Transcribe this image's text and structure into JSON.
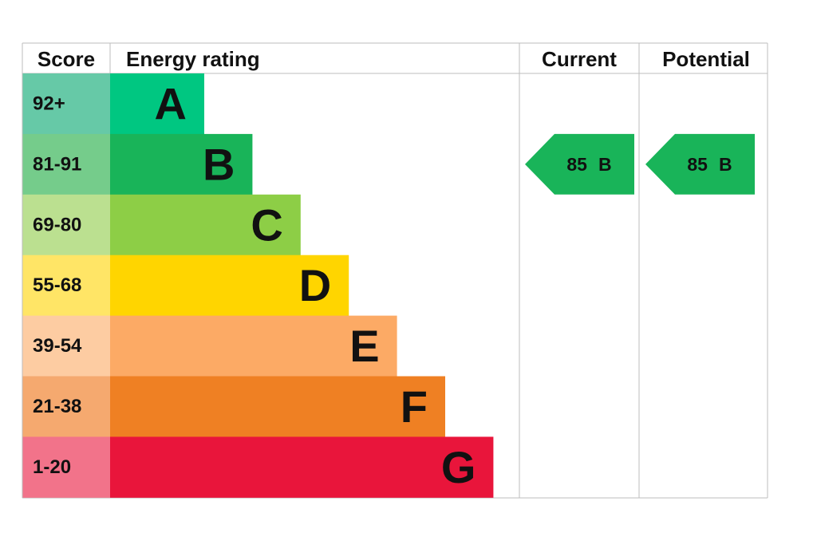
{
  "header": {
    "score": "Score",
    "rating": "Energy rating",
    "current": "Current",
    "potential": "Potential"
  },
  "rows": [
    {
      "score": "92+",
      "letter": "A",
      "color": "#00c781",
      "score_color": "#66c9a7"
    },
    {
      "score": "81-91",
      "letter": "B",
      "color": "#19b459",
      "score_color": "#75cc8b"
    },
    {
      "score": "69-80",
      "letter": "C",
      "color": "#8dce46",
      "score_color": "#bbe090"
    },
    {
      "score": "55-68",
      "letter": "D",
      "color": "#ffd500",
      "score_color": "#ffe566"
    },
    {
      "score": "39-54",
      "letter": "E",
      "color": "#fcaa65",
      "score_color": "#fdcca2"
    },
    {
      "score": "21-38",
      "letter": "F",
      "color": "#ef8023",
      "score_color": "#f5a96f"
    },
    {
      "score": "1-20",
      "letter": "G",
      "color": "#e9153b",
      "score_color": "#f2738a"
    }
  ],
  "current": {
    "score": 85,
    "rating": "B"
  },
  "potential": {
    "score": 85,
    "rating": "B"
  }
}
